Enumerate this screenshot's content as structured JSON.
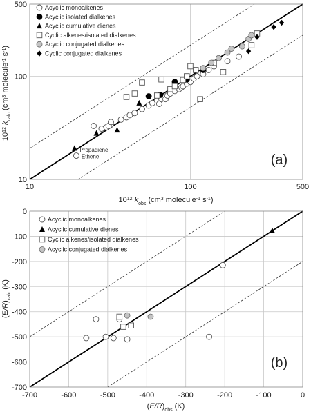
{
  "chart_data": [
    {
      "type": "scatter",
      "panel_label": "(a)",
      "xscale": "log",
      "yscale": "log",
      "xlim": [
        10,
        500
      ],
      "ylim": [
        10,
        500
      ],
      "xticks": [
        10,
        100,
        500
      ],
      "yticks": [
        10,
        100,
        500
      ],
      "tick_labels_x": [
        "10",
        "100",
        "500"
      ],
      "tick_labels_y": [
        "10",
        "100",
        "500"
      ],
      "xlabel": {
        "prefix": "10",
        "sup": "12",
        "k": "k",
        "sub": "obs",
        "rest": " (cm",
        "sup2": "3",
        "rest2": " molecule",
        "sup3": "-1",
        "rest3": " s",
        "sup4": "-1",
        "end": ")"
      },
      "ylabel": {
        "prefix": "10",
        "sup": "12",
        "k": "k",
        "sub": "calc",
        "rest": " (cm",
        "sup2": "3",
        "rest2": " molecule",
        "sup3": "-1",
        "rest3": " s",
        "sup4": "-1",
        "end": ")"
      },
      "grid": true,
      "legend_position": "top-left",
      "series": [
        {
          "name": "Acyclic monoalkenes",
          "marker": "circle-open",
          "points": [
            [
              19.5,
              17
            ],
            [
              25,
              33
            ],
            [
              28,
              31
            ],
            [
              30,
              32
            ],
            [
              32,
              34
            ],
            [
              31,
              33
            ],
            [
              32,
              36
            ],
            [
              37,
              38
            ],
            [
              40,
              40
            ],
            [
              42,
              42
            ],
            [
              45,
              44
            ],
            [
              50,
              48
            ],
            [
              55,
              52
            ],
            [
              58,
              55
            ],
            [
              62,
              58
            ],
            [
              64,
              54
            ],
            [
              66,
              60
            ],
            [
              70,
              60
            ],
            [
              72,
              65
            ],
            [
              75,
              68
            ],
            [
              80,
              72
            ],
            [
              85,
              75
            ],
            [
              88,
              78
            ],
            [
              90,
              80
            ],
            [
              95,
              85
            ],
            [
              100,
              88
            ],
            [
              105,
              95
            ],
            [
              110,
              100
            ],
            [
              120,
              105
            ],
            [
              130,
              115
            ],
            [
              140,
              125
            ],
            [
              170,
              140
            ],
            [
              200,
              155
            ]
          ]
        },
        {
          "name": "Acyclic isolated dialkenes",
          "marker": "circle-filled",
          "points": [
            [
              55,
              64
            ],
            [
              65,
              66
            ],
            [
              80,
              88
            ],
            [
              90,
              92
            ],
            [
              95,
              93
            ],
            [
              120,
              115
            ]
          ]
        },
        {
          "name": "Acyclic cumulative dienes",
          "marker": "triangle-filled",
          "points": [
            [
              19,
              20
            ],
            [
              26,
              28
            ],
            [
              35,
              30
            ],
            [
              48,
              55
            ]
          ]
        },
        {
          "name": "Cyclic alkenes/isolated dialkenes",
          "marker": "square-open",
          "points": [
            [
              40,
              63
            ],
            [
              45,
              68
            ],
            [
              50,
              87
            ],
            [
              62,
              65
            ],
            [
              66,
              93
            ],
            [
              75,
              75
            ],
            [
              80,
              80
            ],
            [
              90,
              92
            ],
            [
              95,
              100
            ],
            [
              100,
              125
            ],
            [
              108,
              115
            ],
            [
              115,
              60
            ],
            [
              140,
              135
            ],
            [
              160,
              110
            ],
            [
              240,
              200
            ],
            [
              260,
              260
            ]
          ]
        },
        {
          "name": "Acyclic conjugated dialkenes",
          "marker": "circle-gray",
          "points": [
            [
              120,
              120
            ],
            [
              135,
              135
            ],
            [
              150,
              150
            ],
            [
              170,
              170
            ],
            [
              180,
              185
            ],
            [
              210,
              195
            ],
            [
              230,
              230
            ],
            [
              240,
              250
            ]
          ]
        },
        {
          "name": "Cyclic conjugated dialkenes",
          "marker": "diamond-filled",
          "points": [
            [
              230,
              175
            ],
            [
              260,
              240
            ],
            [
              330,
              300
            ],
            [
              370,
              330
            ]
          ]
        }
      ],
      "annotations": [
        "Propadiene",
        "Ethene"
      ],
      "lines": [
        "1:1",
        "factor 2 bounds"
      ]
    },
    {
      "type": "scatter",
      "panel_label": "(b)",
      "xlim": [
        -700,
        0
      ],
      "ylim": [
        -700,
        0
      ],
      "xticks": [
        -700,
        -600,
        -500,
        -400,
        -300,
        -200,
        -100,
        0
      ],
      "yticks": [
        -700,
        -600,
        -500,
        -400,
        -300,
        -200,
        -100,
        0
      ],
      "tick_labels_x": [
        "-700",
        "-600",
        "-500",
        "-400",
        "-300",
        "-200",
        "-100",
        "0"
      ],
      "tick_labels_y": [
        "-700",
        "-600",
        "-500",
        "-400",
        "-300",
        "-200",
        "-100",
        "0"
      ],
      "xlabel": {
        "open": "(",
        "er": "E/R",
        "close": ")",
        "sub": "obs",
        "rest": " (K)"
      },
      "ylabel": {
        "open": "(",
        "er": "E/R",
        "close": ")",
        "sub": "calc",
        "rest": " (K)"
      },
      "grid": true,
      "legend_position": "top-left",
      "series": [
        {
          "name": "Acyclic monoalkenes",
          "marker": "circle-open",
          "points": [
            [
              -555,
              -505
            ],
            [
              -530,
              -430
            ],
            [
              -505,
              -500
            ],
            [
              -485,
              -505
            ],
            [
              -470,
              -430
            ],
            [
              -450,
              -510
            ],
            [
              -240,
              -500
            ],
            [
              -205,
              -215
            ]
          ]
        },
        {
          "name": "Acyclic cumulative dienes",
          "marker": "triangle-filled",
          "points": [
            [
              -78,
              -78
            ]
          ]
        },
        {
          "name": "Cyclic alkenes/isolated dialkenes",
          "marker": "square-open",
          "points": [
            [
              -470,
              -420
            ],
            [
              -460,
              -460
            ],
            [
              -440,
              -455
            ]
          ]
        },
        {
          "name": "Acyclic conjugated dialkenes",
          "marker": "circle-gray",
          "points": [
            [
              -450,
              -415
            ],
            [
              -390,
              -420
            ]
          ]
        }
      ],
      "lines": [
        "1:1",
        "±200 K bounds"
      ]
    }
  ]
}
